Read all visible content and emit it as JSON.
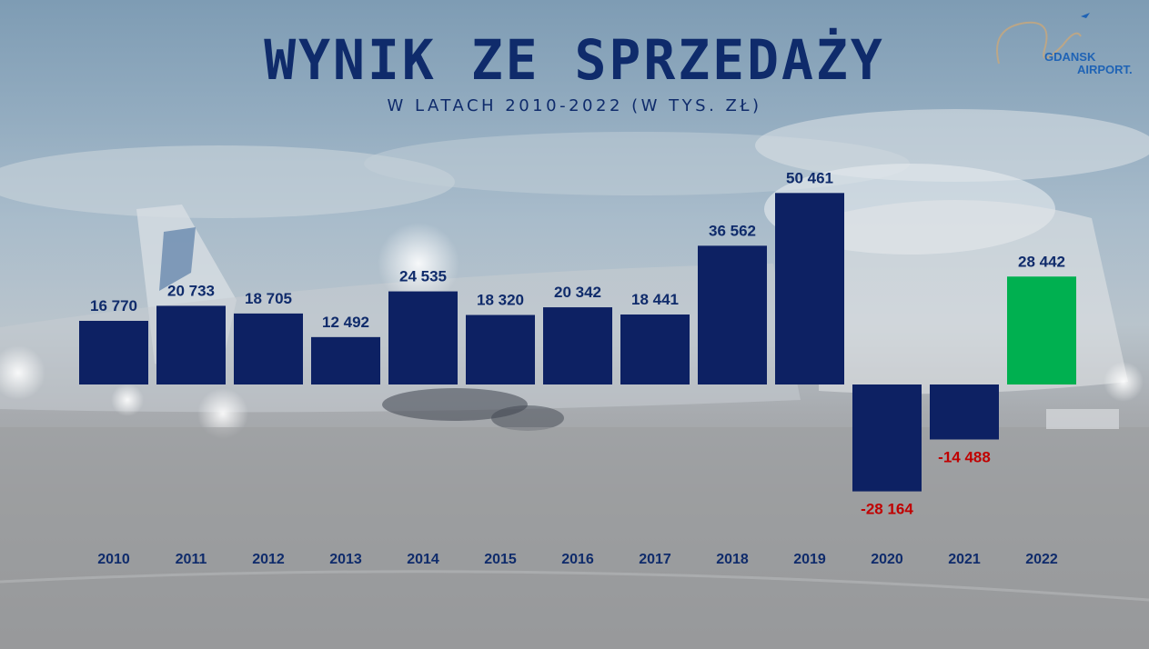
{
  "header": {
    "title": "WYNIK ZE SPRZEDAŻY",
    "subtitle": "W LATACH 2010-2022 (W TYS. ZŁ)"
  },
  "logo": {
    "line1": "GDANSK",
    "line2": "AIRPORT."
  },
  "colors": {
    "bar": "#0d2163",
    "highlight": "#00b050",
    "negative_label": "#c00000",
    "label": "#0f2b6b"
  },
  "chart_data": {
    "type": "bar",
    "categories": [
      "2010",
      "2011",
      "2012",
      "2013",
      "2014",
      "2015",
      "2016",
      "2017",
      "2018",
      "2019",
      "2020",
      "2021",
      "2022"
    ],
    "values": [
      16770,
      20733,
      18705,
      12492,
      24535,
      18320,
      20342,
      18441,
      36562,
      50461,
      -28164,
      -14488,
      28442
    ],
    "value_labels": [
      "16 770",
      "20 733",
      "18 705",
      "12 492",
      "24 535",
      "18 320",
      "20 342",
      "18 441",
      "36 562",
      "50 461",
      "-28 164",
      "-14 488",
      "28 442"
    ],
    "highlight_category": "2022",
    "title": "WYNIK ZE SPRZEDAŻY",
    "subtitle": "W LATACH 2010-2022 (W TYS. ZŁ)",
    "grid": false,
    "legend": "none"
  }
}
